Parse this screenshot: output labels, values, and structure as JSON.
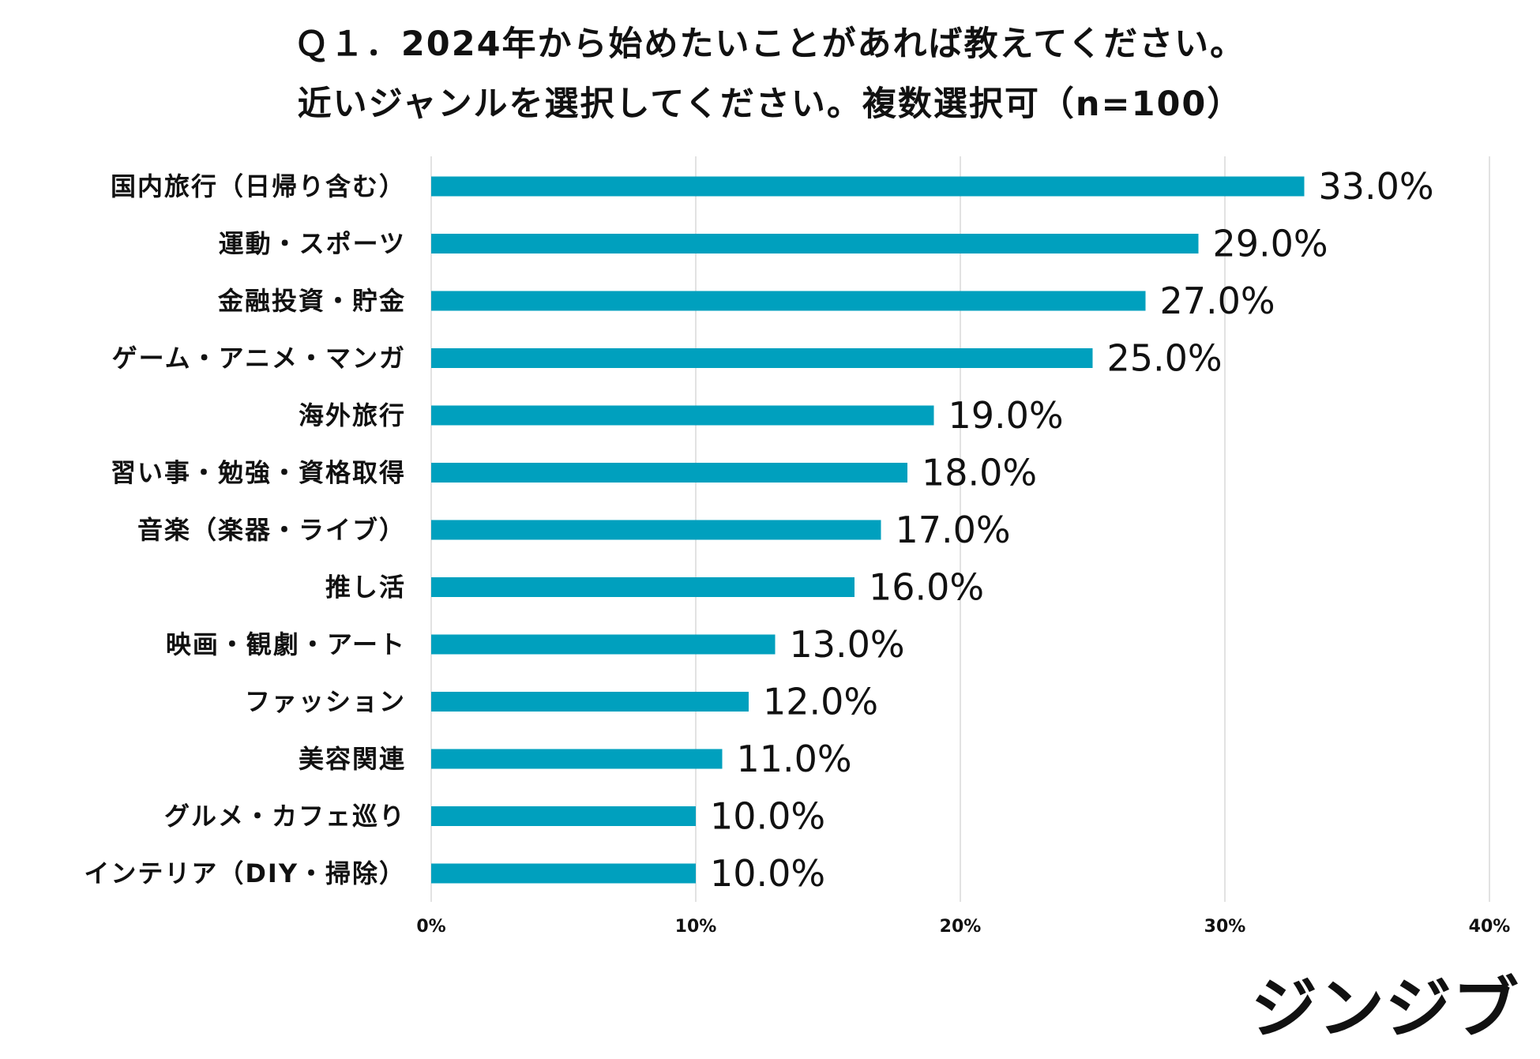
{
  "chart_data": {
    "type": "bar",
    "orientation": "horizontal",
    "title": "Ｑ１．2024年から始めたいことがあれば教えてください。",
    "subtitle": "近いジャンルを選択してください。複数選択可（n=100）",
    "categories": [
      "国内旅行（日帰り含む）",
      "運動・スポーツ",
      "金融投資・貯金",
      "ゲーム・アニメ・マンガ",
      "海外旅行",
      "習い事・勉強・資格取得",
      "音楽（楽器・ライブ）",
      "推し活",
      "映画・観劇・アート",
      "ファッション",
      "美容関連",
      "グルメ・カフェ巡り",
      "インテリア（DIY・掃除）"
    ],
    "values": [
      33.0,
      29.0,
      27.0,
      25.0,
      19.0,
      18.0,
      17.0,
      16.0,
      13.0,
      12.0,
      11.0,
      10.0,
      10.0
    ],
    "value_labels": [
      "33.0%",
      "29.0%",
      "27.0%",
      "25.0%",
      "19.0%",
      "18.0%",
      "17.0%",
      "16.0%",
      "13.0%",
      "12.0%",
      "11.0%",
      "10.0%",
      "10.0%"
    ],
    "xlim": [
      0,
      40
    ],
    "xticks": [
      0,
      10,
      20,
      30,
      40
    ],
    "xtick_labels": [
      "0%",
      "10%",
      "20%",
      "30%",
      "40%"
    ],
    "xlabel": "",
    "ylabel": "",
    "grid": true,
    "legend": "none",
    "colors": {
      "bar": "#00a0be",
      "grid": "#d9d9d9",
      "text": "#111111"
    }
  },
  "logo": {
    "text": "ジンジブ"
  }
}
